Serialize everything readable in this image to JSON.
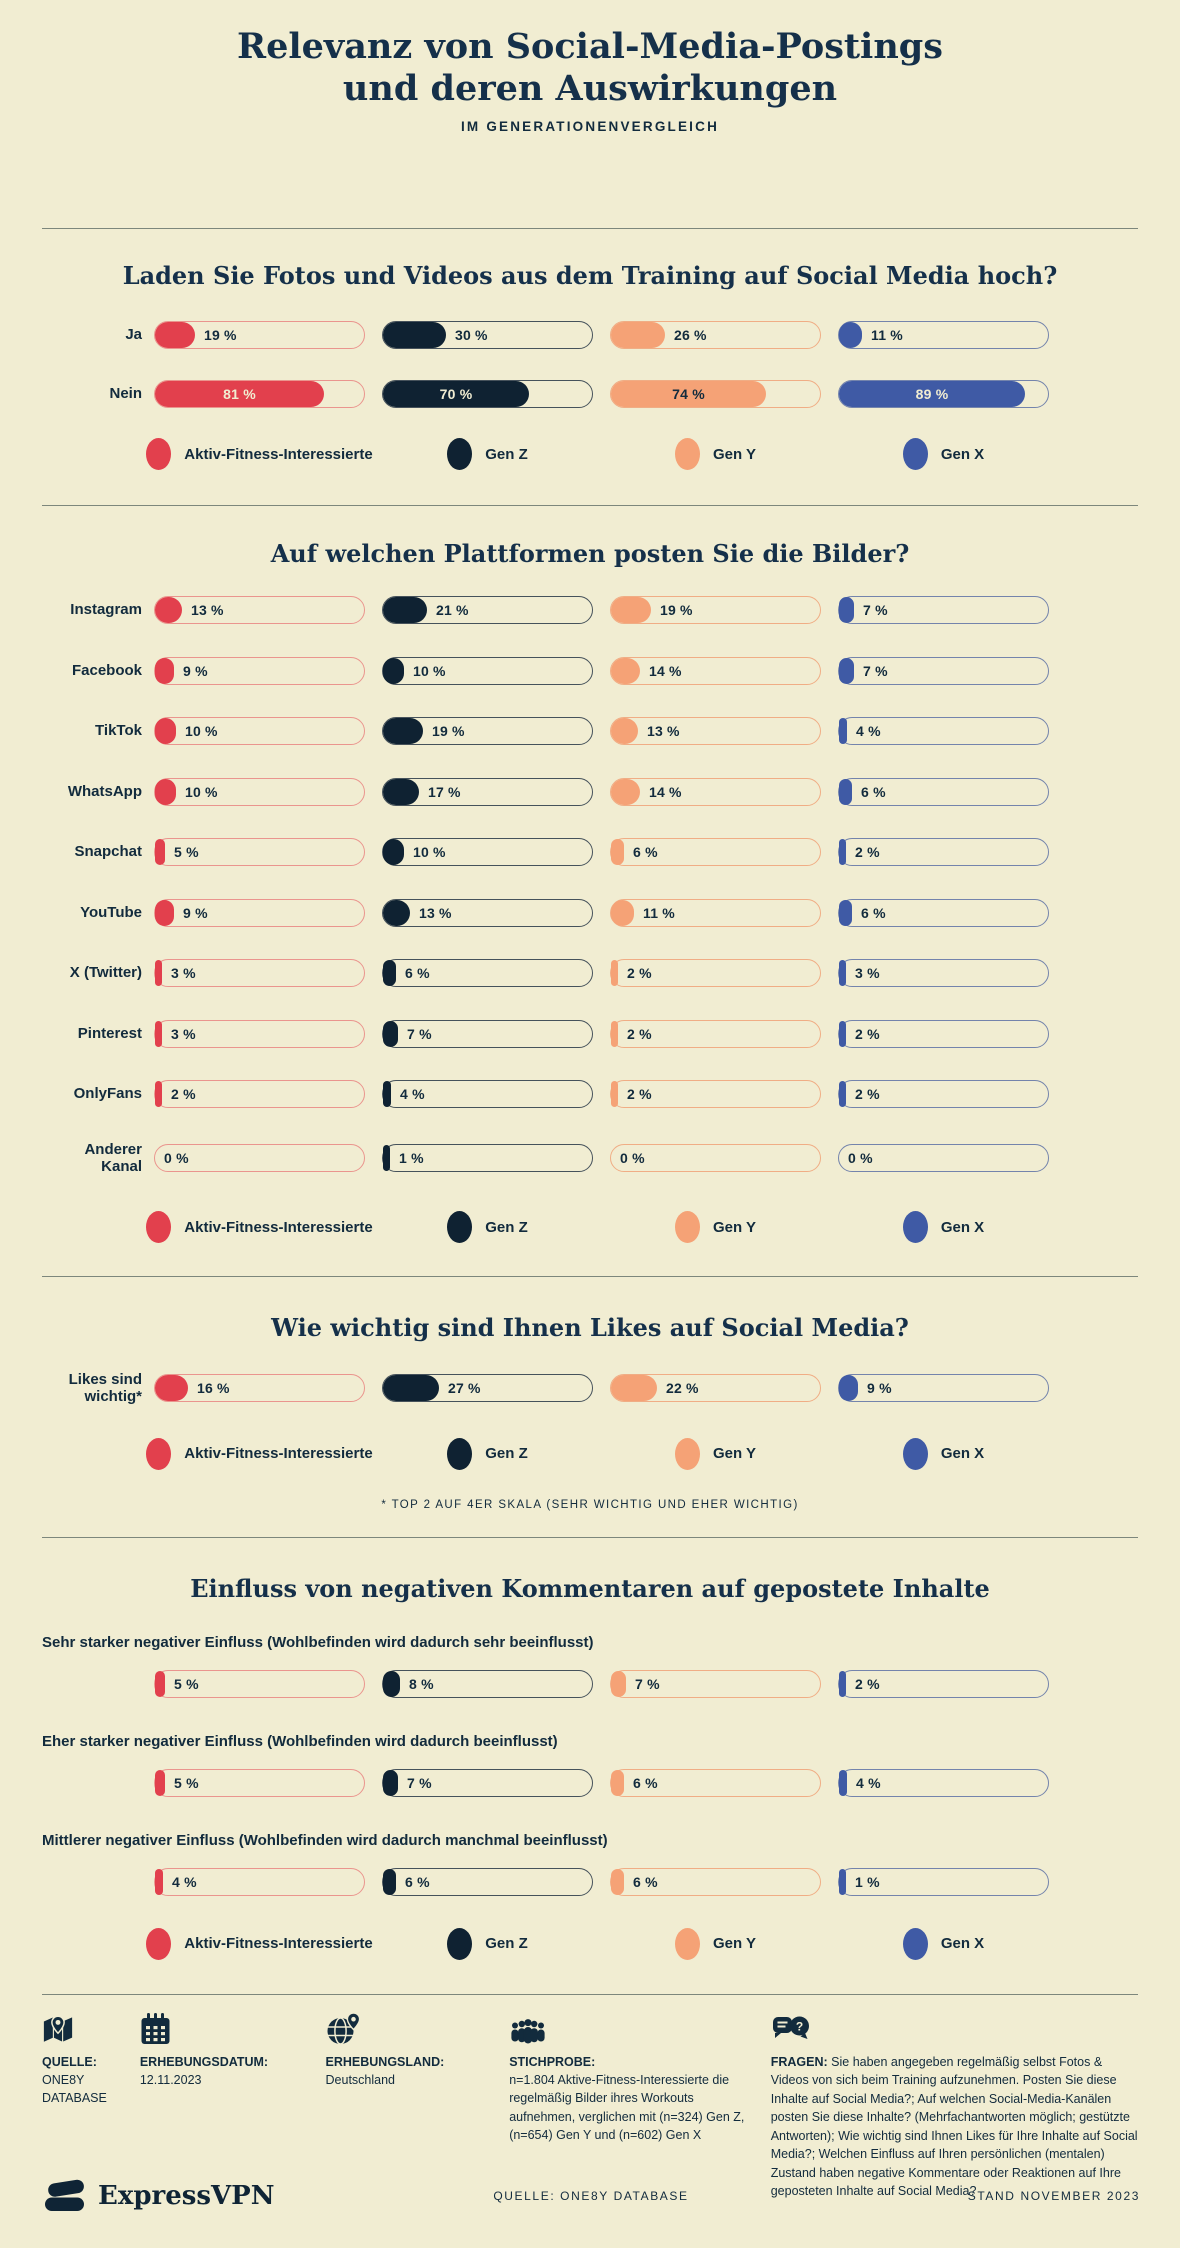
{
  "header": {
    "title_line1": "Relevanz von Social-Media-Postings",
    "title_line2": "und deren Auswirkungen",
    "subtitle": "IM GENERATIONENVERGLEICH"
  },
  "palette": {
    "background": "#f1edd2",
    "ink": "#122b3d",
    "divider": "#7d877c",
    "red": "#e2404d",
    "navy": "#0f2232",
    "peach": "#f5a276",
    "blue": "#3f5aa5",
    "cream_text": "#f1edd2"
  },
  "groups": [
    {
      "id": "afi",
      "label": "Aktiv-Fitness-Interessierte",
      "color": "#e2404d",
      "border": "#ea958e",
      "label_on_fill": "#f1edd2"
    },
    {
      "id": "genz",
      "label": "Gen Z",
      "color": "#0f2232",
      "border": "#46525b",
      "label_on_fill": "#f1edd2"
    },
    {
      "id": "geny",
      "label": "Gen Y",
      "color": "#f5a276",
      "border": "#f0ad85",
      "label_on_fill": "#122b3d"
    },
    {
      "id": "genx",
      "label": "Gen X",
      "color": "#3f5aa5",
      "border": "#7484ac",
      "label_on_fill": "#f1edd2"
    }
  ],
  "chart_data": [
    {
      "type": "bar",
      "title": "Laden Sie Fotos und Videos aus dem Training auf Social Media hoch?",
      "unit": "%",
      "xlim": [
        0,
        100
      ],
      "grid": false,
      "category_label_position": "left",
      "legend_position": "bottom",
      "categories": [
        "Ja",
        "Nein"
      ],
      "series": [
        {
          "name": "Aktiv-Fitness-Interessierte",
          "values": [
            19,
            81
          ]
        },
        {
          "name": "Gen Z",
          "values": [
            30,
            70
          ]
        },
        {
          "name": "Gen Y",
          "values": [
            26,
            74
          ]
        },
        {
          "name": "Gen X",
          "values": [
            11,
            89
          ]
        }
      ]
    },
    {
      "type": "bar",
      "title": "Auf welchen Plattformen posten Sie die Bilder?",
      "unit": "%",
      "xlim": [
        0,
        100
      ],
      "grid": false,
      "category_label_position": "left",
      "legend_position": "bottom",
      "categories": [
        "Instagram",
        "Facebook",
        "TikTok",
        "WhatsApp",
        "Snapchat",
        "YouTube",
        "X (Twitter)",
        "Pinterest",
        "OnlyFans",
        "Anderer Kanal"
      ],
      "series": [
        {
          "name": "Aktiv-Fitness-Interessierte",
          "values": [
            13,
            9,
            10,
            10,
            5,
            9,
            3,
            3,
            2,
            0
          ]
        },
        {
          "name": "Gen Z",
          "values": [
            21,
            10,
            19,
            17,
            10,
            13,
            6,
            7,
            4,
            1
          ]
        },
        {
          "name": "Gen Y",
          "values": [
            19,
            14,
            13,
            14,
            6,
            11,
            2,
            2,
            2,
            0
          ]
        },
        {
          "name": "Gen X",
          "values": [
            7,
            7,
            4,
            6,
            2,
            6,
            3,
            2,
            2,
            0
          ]
        }
      ]
    },
    {
      "type": "bar",
      "title": "Wie wichtig sind Ihnen Likes auf Social Media?",
      "unit": "%",
      "xlim": [
        0,
        100
      ],
      "grid": false,
      "category_label_position": "left",
      "legend_position": "bottom",
      "footnote": "* TOP 2 AUF 4ER SKALA (SEHR WICHTIG UND EHER WICHTIG)",
      "categories": [
        "Likes sind wichtig*"
      ],
      "series": [
        {
          "name": "Aktiv-Fitness-Interessierte",
          "values": [
            16
          ]
        },
        {
          "name": "Gen Z",
          "values": [
            27
          ]
        },
        {
          "name": "Gen Y",
          "values": [
            22
          ]
        },
        {
          "name": "Gen X",
          "values": [
            9
          ]
        }
      ]
    },
    {
      "type": "bar",
      "title": "Einfluss von negativen Kommentaren auf gepostete Inhalte",
      "unit": "%",
      "xlim": [
        0,
        100
      ],
      "grid": false,
      "category_label_position": "above",
      "legend_position": "bottom",
      "categories": [
        "Sehr starker negativer Einfluss (Wohlbefinden wird dadurch sehr beeinflusst)",
        "Eher starker negativer Einfluss (Wohlbefinden wird dadurch beeinflusst)",
        "Mittlerer negativer Einfluss (Wohlbefinden wird dadurch manchmal beeinflusst)"
      ],
      "series": [
        {
          "name": "Aktiv-Fitness-Interessierte",
          "values": [
            5,
            5,
            4
          ]
        },
        {
          "name": "Gen Z",
          "values": [
            8,
            7,
            6
          ]
        },
        {
          "name": "Gen Y",
          "values": [
            7,
            6,
            6
          ]
        },
        {
          "name": "Gen X",
          "values": [
            2,
            4,
            1
          ]
        }
      ]
    }
  ],
  "footer": {
    "meta": [
      {
        "icon": "map-pin-icon",
        "label": "QUELLE:",
        "value": "ONE8Y DATABASE"
      },
      {
        "icon": "calendar-icon",
        "label": "ERHEBUNGSDATUM:",
        "value": "12.11.2023"
      },
      {
        "icon": "globe-pin-icon",
        "label": "ERHEBUNGSLAND:",
        "value": "Deutschland"
      },
      {
        "icon": "people-icon",
        "label": "STICHPROBE:",
        "value": "n=1.804 Aktive-Fitness-Interessierte die regelmäßig Bilder ihres Workouts aufnehmen, verglichen mit (n=324) Gen Z, (n=654) Gen Y und (n=602) Gen X"
      },
      {
        "icon": "question-bubbles-icon",
        "label": "FRAGEN:",
        "value": "Sie haben angegeben regelmäßig selbst Fotos & Videos von sich beim Training aufzunehmen. Posten Sie diese Inhalte auf Social Media?; Auf welchen Social-Media-Kanälen posten Sie diese Inhalte? (Mehrfachantworten möglich; gestützte Antworten); Wie wichtig sind Ihnen Likes für Ihre Inhalte auf Social Media?; Welchen Einfluss auf Ihren persönlichen (mentalen) Zustand haben negative Kommentare oder Reaktionen auf Ihre geposteten Inhalte auf Social Media?"
      }
    ],
    "brand": "ExpressVPN",
    "source_line": "QUELLE: ONE8Y DATABASE",
    "stand_line": "STAND NOVEMBER 2023"
  }
}
